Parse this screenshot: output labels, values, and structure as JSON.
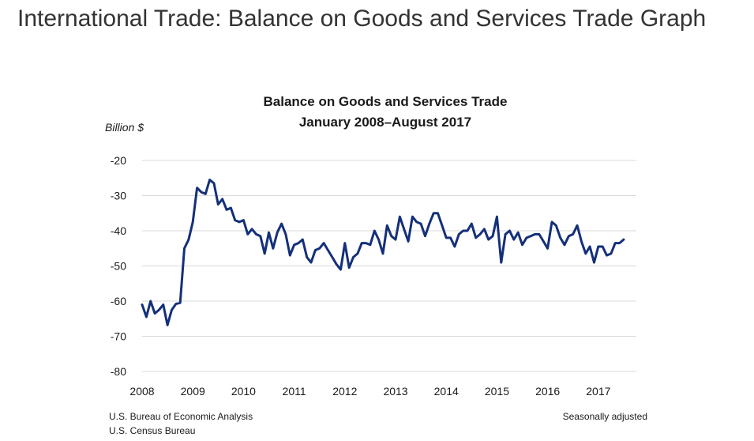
{
  "page": {
    "heading": "International Trade: Balance on Goods and Services Trade Graph"
  },
  "chart_data": {
    "type": "line",
    "title": "Balance on Goods and Services Trade",
    "subtitle": "January 2008–August 2017",
    "ylabel": "Billion $",
    "xlabel": "",
    "ylim": [
      -80,
      -20
    ],
    "xlim": [
      2008.0,
      2017.75
    ],
    "y_ticks": [
      -20,
      -30,
      -40,
      -50,
      -60,
      -70,
      -80
    ],
    "x_ticks": [
      "2008",
      "2009",
      "2010",
      "2011",
      "2012",
      "2013",
      "2014",
      "2015",
      "2016",
      "2017"
    ],
    "grid": true,
    "legend": "none",
    "colors": {
      "line": "#14307a",
      "grid": "#d9d9d9",
      "text": "#1a1a1a"
    },
    "footnotes": {
      "source_left_1": "U.S. Bureau of Economic Analysis",
      "source_left_2": "U.S. Census Bureau",
      "note_right": "Seasonally adjusted"
    },
    "series": [
      {
        "start": "2008-01",
        "frequency": "monthly",
        "values": [
          -61.0,
          -64.5,
          -60.0,
          -63.5,
          -62.5,
          -61.0,
          -66.8,
          -62.5,
          -60.8,
          -60.5,
          -45.0,
          -42.5,
          -37.5,
          -27.8,
          -29.0,
          -29.5,
          -25.5,
          -26.5,
          -32.5,
          -31.0,
          -34.0,
          -33.5,
          -37.0,
          -37.5,
          -37.0,
          -41.0,
          -39.5,
          -41.0,
          -41.5,
          -46.5,
          -40.5,
          -45.0,
          -40.5,
          -38.0,
          -41.0,
          -47.0,
          -44.0,
          -43.5,
          -42.5,
          -47.5,
          -49.0,
          -45.5,
          -45.0,
          -43.5,
          -45.5,
          -47.5,
          -49.5,
          -51.0,
          -43.5,
          -50.5,
          -47.5,
          -46.5,
          -43.5,
          -43.5,
          -44.0,
          -40.0,
          -42.5,
          -46.5,
          -38.5,
          -41.5,
          -42.5,
          -36.0,
          -39.5,
          -43.0,
          -36.0,
          -37.5,
          -38.0,
          -41.5,
          -38.0,
          -35.0,
          -35.0,
          -38.5,
          -42.0,
          -42.0,
          -44.5,
          -41.0,
          -40.0,
          -40.0,
          -38.0,
          -42.0,
          -41.0,
          -39.5,
          -42.5,
          -41.5,
          -36.0,
          -49.0,
          -41.0,
          -40.0,
          -42.5,
          -40.5,
          -44.0,
          -42.0,
          -41.5,
          -41.0,
          -41.0,
          -43.0,
          -45.0,
          -37.5,
          -38.5,
          -42.0,
          -44.0,
          -41.5,
          -41.0,
          -38.5,
          -43.0,
          -46.5,
          -44.5,
          -49.0,
          -44.5,
          -44.5,
          -47.0,
          -46.5,
          -43.5,
          -43.5,
          -42.5
        ]
      }
    ]
  }
}
